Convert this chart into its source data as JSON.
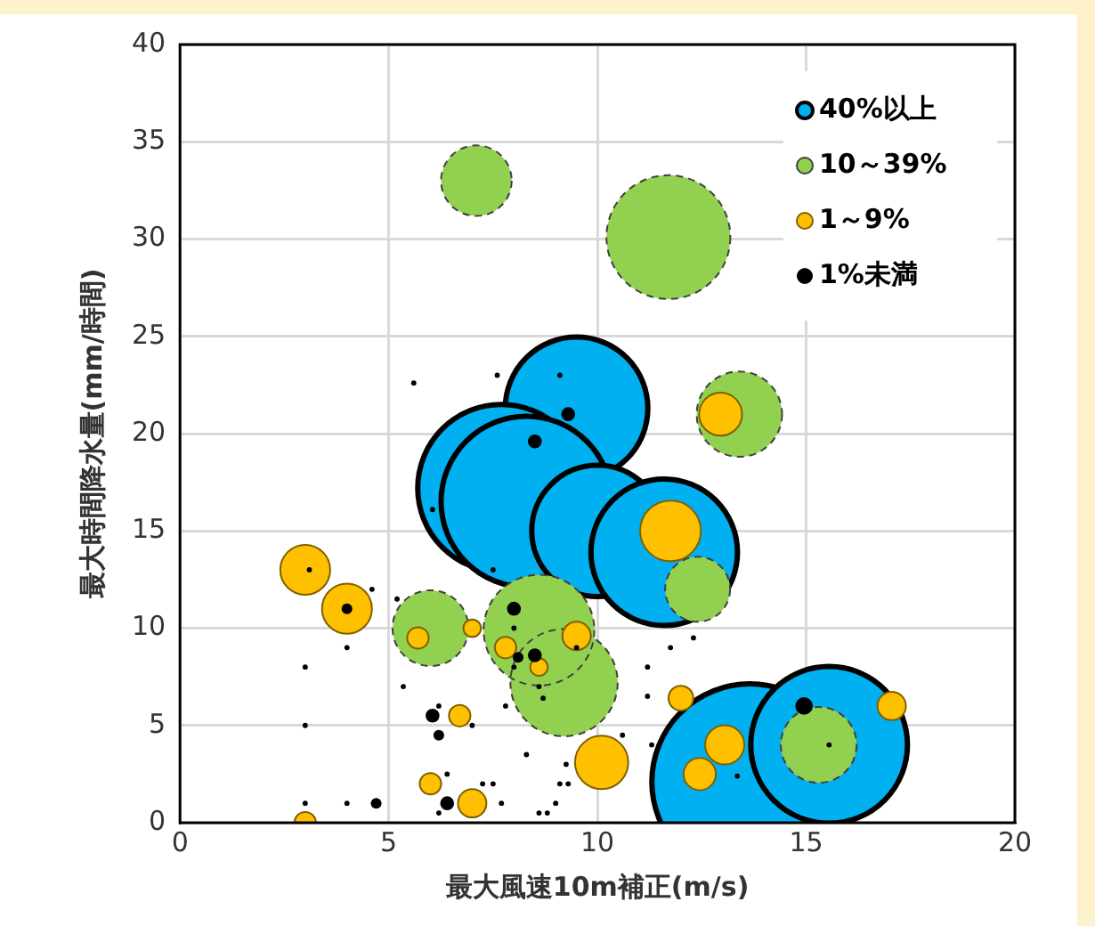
{
  "chart_data": {
    "type": "bubble",
    "xlabel": "最大風速10m補正(m/s)",
    "ylabel": "最大時間降水量(mm/時間)",
    "xlim": [
      0,
      20
    ],
    "xticks": [
      0,
      5,
      10,
      15,
      20
    ],
    "ylim": [
      0,
      40
    ],
    "yticks": [
      0,
      5,
      10,
      15,
      20,
      25,
      30,
      35,
      40
    ],
    "grid": true,
    "legend": "top right",
    "series": [
      {
        "name": "40%以上",
        "color": "#00b0f0",
        "x": [
          9.5,
          7.7,
          8.3,
          10.0,
          11.6,
          13.65,
          15.55
        ],
        "values": [
          21.3,
          17.2,
          16.5,
          15.0,
          13.9,
          2.1,
          4.0
        ],
        "sizes": [
          0.53,
          0.73,
          0.76,
          0.45,
          0.56,
          1,
          0.64
        ]
      },
      {
        "name": "10～39%",
        "color": "#92d050",
        "line_style": "dashed",
        "x": [
          7.1,
          11.7,
          13.4,
          12.4,
          6.0,
          8.6,
          9.2,
          15.3
        ],
        "values": [
          33.0,
          30.1,
          21.0,
          12.0,
          10.0,
          9.9,
          7.2,
          4.0
        ],
        "sizes": [
          0.13,
          0.4,
          0.19,
          0.11,
          0.15,
          0.32,
          0.3,
          0.15
        ]
      },
      {
        "name": "1～9%",
        "color": "#ffc000",
        "x": [
          3.0,
          4.0,
          5.7,
          7.0,
          7.8,
          8.6,
          9.5,
          6.7,
          10.1,
          6.0,
          7.0,
          3.0,
          11.75,
          12.95,
          12.0,
          13.05,
          12.45,
          17.05
        ],
        "values": [
          13.0,
          11.0,
          9.5,
          10.0,
          9.0,
          8.0,
          9.6,
          5.5,
          3.1,
          2.0,
          1.0,
          0,
          15.0,
          21.0,
          6.4,
          4.0,
          2.5,
          6.0
        ],
        "sizes": [
          0.065,
          0.065,
          0.012,
          0.008,
          0.012,
          0.008,
          0.021,
          0.012,
          0.074,
          0.012,
          0.021,
          0.012,
          0.096,
          0.048,
          0.016,
          0.04,
          0.027,
          0.021
        ]
      },
      {
        "name": "1%未満",
        "color": "#000000",
        "x": [
          9.3,
          8.5,
          8.0,
          4.0,
          8.5,
          8.1,
          6.05,
          6.2,
          6.4,
          14.95,
          4.7,
          5.6,
          7.6,
          9.1,
          6.05,
          7.5,
          3.1,
          4.6,
          5.2,
          4.0,
          3.0,
          5.35,
          6.2,
          7.0,
          3.0,
          7.8,
          8.3,
          9.25,
          8.0,
          8.0,
          8.6,
          8.7,
          6.4,
          7.25,
          7.5,
          9.1,
          9.3,
          9.0,
          7.7,
          4.0,
          3.0,
          8.6,
          8.8,
          6.2,
          9.5,
          12.3,
          11.75,
          11.2,
          11.2,
          10.6,
          11.3,
          13.35,
          15.55
        ],
        "values": [
          21.0,
          19.6,
          11.0,
          11.0,
          8.6,
          8.5,
          5.5,
          4.5,
          1.0,
          6.0,
          1.0,
          22.6,
          23.0,
          23.0,
          16.1,
          13.0,
          13.0,
          12.0,
          11.5,
          9.0,
          8.0,
          7.0,
          6.0,
          5.0,
          5.0,
          6.0,
          3.5,
          3.0,
          10.0,
          8.0,
          7.0,
          6.4,
          2.5,
          2.0,
          2.0,
          2.0,
          2.0,
          1.0,
          1.0,
          1.0,
          1.0,
          0.5,
          0.5,
          0.5,
          9.0,
          9.5,
          9.0,
          8.0,
          6.5,
          4.5,
          4.0,
          2.4,
          4.0
        ],
        "sizes": [
          0.005,
          0.005,
          0.005,
          0.003,
          0.005,
          0.003,
          0.005,
          0.003,
          0.005,
          0.008,
          0.003,
          0.0007,
          0.0007,
          0.0007,
          0.0007,
          0.0007,
          0.0007,
          0.0007,
          0.0007,
          0.0007,
          0.0007,
          0.0007,
          0.0007,
          0.0007,
          0.0007,
          0.0007,
          0.0007,
          0.0007,
          0.0007,
          0.0007,
          0.0007,
          0.0007,
          0.0007,
          0.0007,
          0.0007,
          0.0007,
          0.0007,
          0.0007,
          0.0007,
          0.0007,
          0.0007,
          0.0007,
          0.0007,
          0.0007,
          0.0007,
          0.0007,
          0.0007,
          0.0007,
          0.0007,
          0.0007,
          0.0007,
          0.0007,
          0.0007
        ]
      }
    ]
  }
}
